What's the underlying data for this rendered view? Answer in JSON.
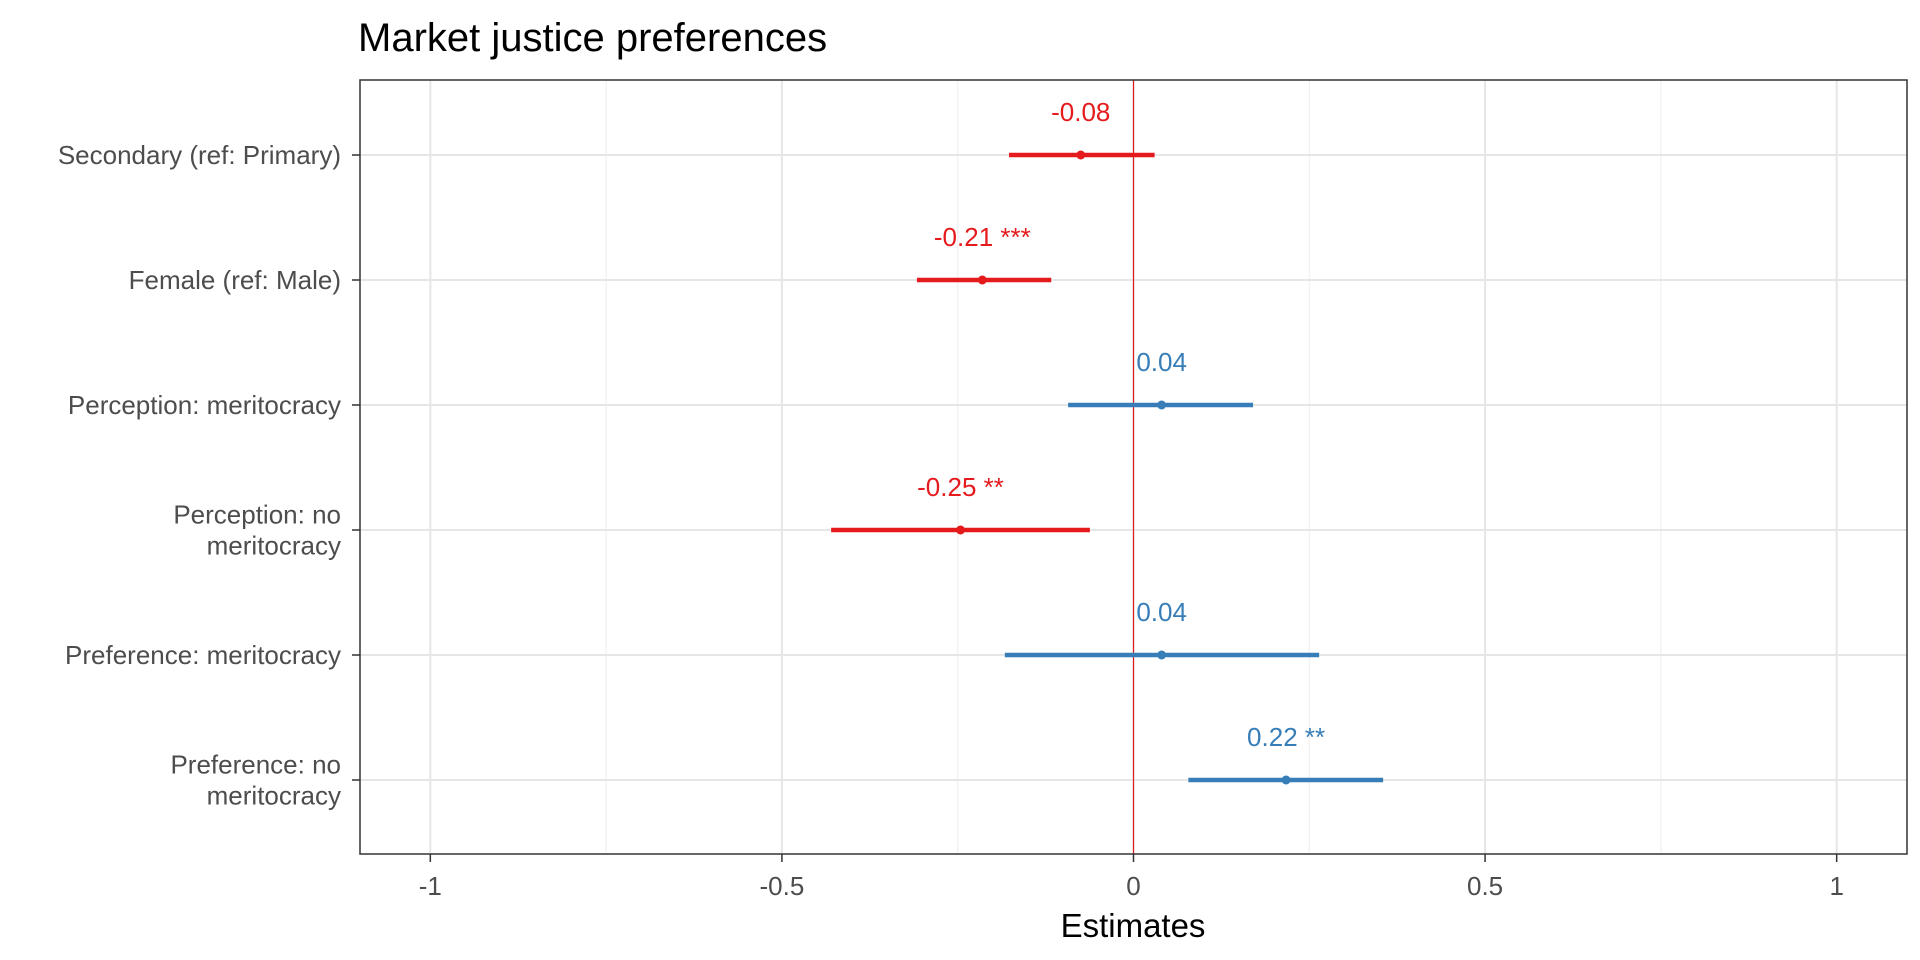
{
  "chart_data": {
    "type": "forest",
    "title": "Market justice preferences",
    "xlabel": "Estimates",
    "xlim": [
      -1.1,
      1.1
    ],
    "xticks": [
      -1,
      -0.5,
      0,
      0.5,
      1
    ],
    "xtick_labels": [
      "-1",
      "-0.5",
      "0",
      "0.5",
      "1"
    ],
    "reference_line": 0,
    "grid": true,
    "colors": {
      "negative": "#e41a1c",
      "positive": "#377eb8",
      "reference": "#e41a1c"
    },
    "terms": [
      {
        "label_lines": [
          "Secondary (ref: Primary)"
        ],
        "estimate": -0.075,
        "ci": [
          -0.177,
          0.03
        ],
        "label": "-0.08",
        "sign": "negative"
      },
      {
        "label_lines": [
          "Female (ref: Male)"
        ],
        "estimate": -0.215,
        "ci": [
          -0.308,
          -0.117
        ],
        "label": "-0.21 ***",
        "sign": "negative"
      },
      {
        "label_lines": [
          "Perception: meritocracy"
        ],
        "estimate": 0.04,
        "ci": [
          -0.093,
          0.17
        ],
        "label": "0.04",
        "sign": "positive"
      },
      {
        "label_lines": [
          "Perception: no",
          "meritocracy"
        ],
        "estimate": -0.246,
        "ci": [
          -0.43,
          -0.062
        ],
        "label": "-0.25 **",
        "sign": "negative"
      },
      {
        "label_lines": [
          "Preference: meritocracy"
        ],
        "estimate": 0.04,
        "ci": [
          -0.183,
          0.264
        ],
        "label": "0.04",
        "sign": "positive"
      },
      {
        "label_lines": [
          "Preference: no",
          "meritocracy"
        ],
        "estimate": 0.217,
        "ci": [
          0.078,
          0.355
        ],
        "label": "0.22 **",
        "sign": "positive"
      }
    ]
  }
}
